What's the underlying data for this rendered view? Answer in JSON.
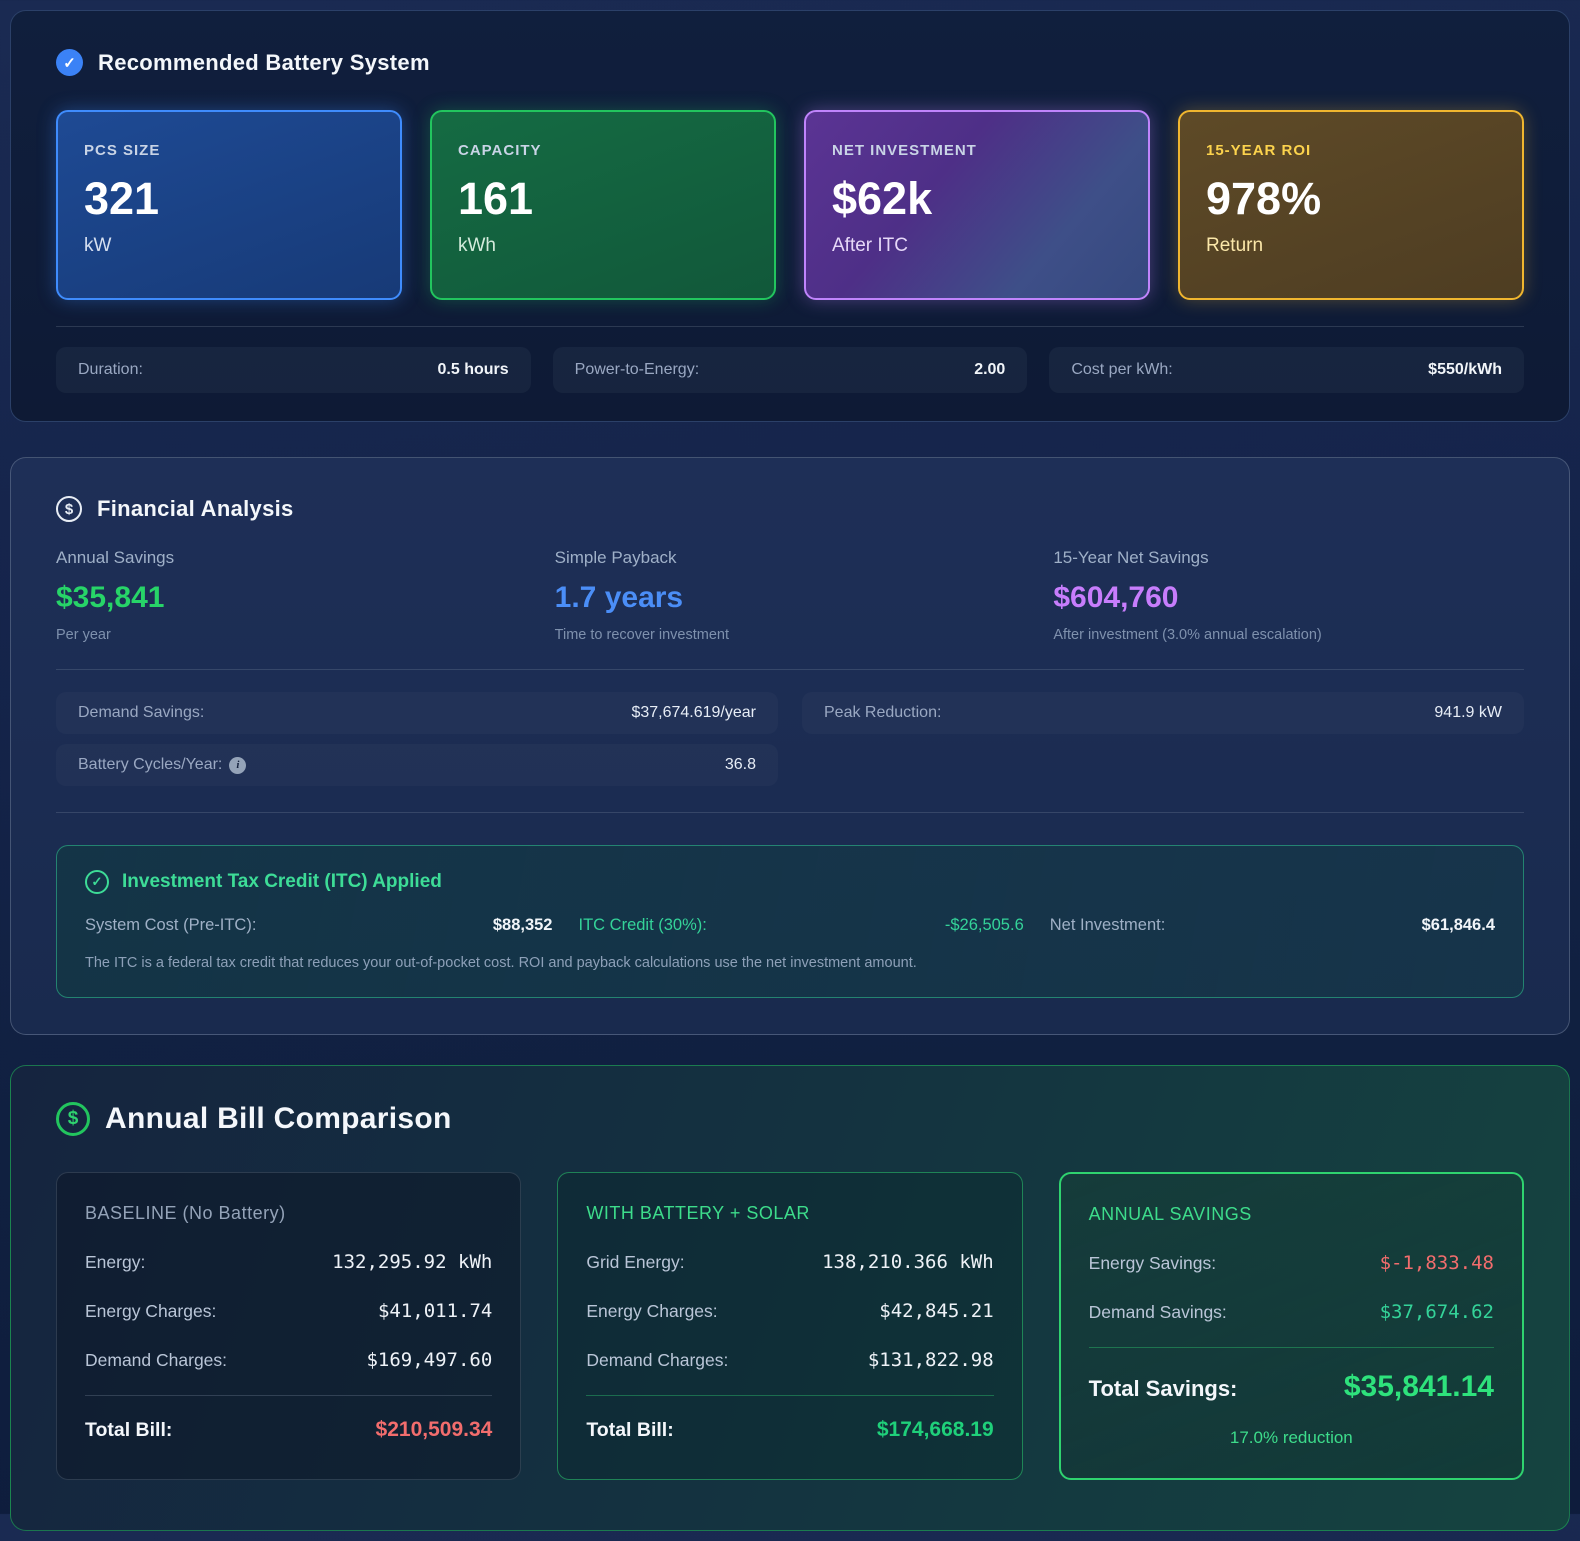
{
  "icons": {
    "check": "✓",
    "dollar": "$",
    "info": "i"
  },
  "recommended": {
    "title": "Recommended Battery System",
    "cards": [
      {
        "label": "PCS SIZE",
        "value": "321",
        "unit": "kW"
      },
      {
        "label": "CAPACITY",
        "value": "161",
        "unit": "kWh"
      },
      {
        "label": "NET INVESTMENT",
        "value": "$62k",
        "unit": "After ITC"
      },
      {
        "label": "15-YEAR ROI",
        "value": "978%",
        "unit": "Return"
      }
    ],
    "specs": [
      {
        "label": "Duration:",
        "value": "0.5 hours"
      },
      {
        "label": "Power-to-Energy:",
        "value": "2.00"
      },
      {
        "label": "Cost per kWh:",
        "value": "$550/kWh"
      }
    ]
  },
  "financial": {
    "title": "Financial Analysis",
    "stats": [
      {
        "label": "Annual Savings",
        "value": "$35,841",
        "sub": "Per year",
        "color": "#27d468"
      },
      {
        "label": "Simple Payback",
        "value": "1.7 years",
        "sub": "Time to recover investment",
        "color": "#4b8ef7"
      },
      {
        "label": "15-Year Net Savings",
        "value": "$604,760",
        "sub": "After investment (3.0% annual escalation)",
        "color": "#c77dfc"
      }
    ],
    "details": [
      {
        "label": "Demand Savings:",
        "value": "$37,674.619/year"
      },
      {
        "label": "Peak Reduction:",
        "value": "941.9 kW"
      },
      {
        "label": "Battery Cycles/Year:",
        "value": "36.8"
      }
    ],
    "itc": {
      "title": "Investment Tax Credit (ITC) Applied",
      "items": [
        {
          "label": "System Cost (Pre-ITC):",
          "value": "$88,352"
        },
        {
          "label": "ITC Credit (30%):",
          "value": "-$26,505.6"
        },
        {
          "label": "Net Investment:",
          "value": "$61,846.4"
        }
      ],
      "note": "The ITC is a federal tax credit that reduces your out-of-pocket cost. ROI and payback calculations use the net investment amount."
    }
  },
  "bills": {
    "title": "Annual Bill Comparison",
    "baseline": {
      "title": "BASELINE (No Battery)",
      "rows": [
        {
          "label": "Energy:",
          "value": "132,295.92 kWh"
        },
        {
          "label": "Energy Charges:",
          "value": "$41,011.74"
        },
        {
          "label": "Demand Charges:",
          "value": "$169,497.60"
        }
      ],
      "total_label": "Total Bill:",
      "total_value": "$210,509.34"
    },
    "with_battery": {
      "title": "WITH BATTERY + SOLAR",
      "rows": [
        {
          "label": "Grid Energy:",
          "value": "138,210.366 kWh"
        },
        {
          "label": "Energy Charges:",
          "value": "$42,845.21"
        },
        {
          "label": "Demand Charges:",
          "value": "$131,822.98"
        }
      ],
      "total_label": "Total Bill:",
      "total_value": "$174,668.19"
    },
    "savings": {
      "title": "ANNUAL SAVINGS",
      "rows": [
        {
          "label": "Energy Savings:",
          "value": "$-1,833.48"
        },
        {
          "label": "Demand Savings:",
          "value": "$37,674.62"
        }
      ],
      "total_label": "Total Savings:",
      "total_value": "$35,841.14",
      "reduction": "17.0% reduction"
    }
  }
}
